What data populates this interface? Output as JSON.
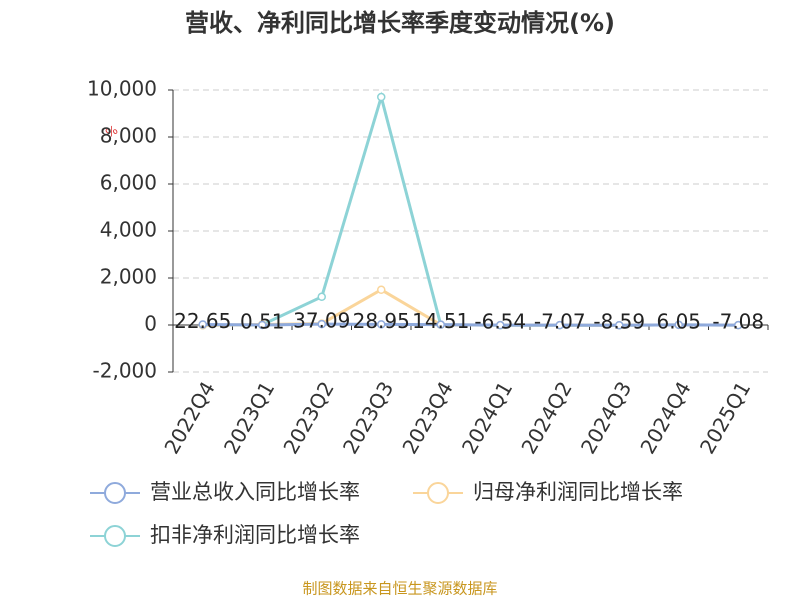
{
  "chart_data": {
    "type": "line",
    "title": "营收、净利同比增长率季度变动情况(%)",
    "y_unit": "%",
    "source": "制图数据来自恒生聚源数据库",
    "categories": [
      "2022Q4",
      "2023Q1",
      "2023Q2",
      "2023Q3",
      "2023Q4",
      "2024Q1",
      "2024Q2",
      "2024Q3",
      "2024Q4",
      "2025Q1"
    ],
    "ylim": [
      -2000,
      10000
    ],
    "yticks": [
      {
        "value": -2000,
        "label": "-2,000"
      },
      0,
      {
        "value": 2000,
        "label": "2,000"
      },
      {
        "value": 4000,
        "label": "4,000"
      },
      {
        "value": 6000,
        "label": "6,000"
      },
      {
        "value": 8000,
        "label": "8,000"
      },
      {
        "value": 10000,
        "label": "10,000"
      }
    ],
    "grid": true,
    "series": [
      {
        "name": "营业总收入同比增长率",
        "color": "#8faadc",
        "values": [
          22.65,
          0.51,
          37.09,
          28.95,
          14.51,
          -6.54,
          -7.07,
          -8.59,
          6.05,
          -7.08
        ],
        "show_labels": true
      },
      {
        "name": "归母净利润同比增长率",
        "color": "#fad59a",
        "values": [
          -10,
          20,
          60,
          1500,
          10,
          -5,
          -5,
          -10,
          5,
          -5
        ],
        "show_labels": false
      },
      {
        "name": "扣非净利润同比增长率",
        "color": "#8dd3d6",
        "values": [
          -10,
          10,
          1200,
          9700,
          10,
          -10,
          -10,
          -10,
          5,
          -5
        ],
        "show_labels": false
      }
    ]
  }
}
